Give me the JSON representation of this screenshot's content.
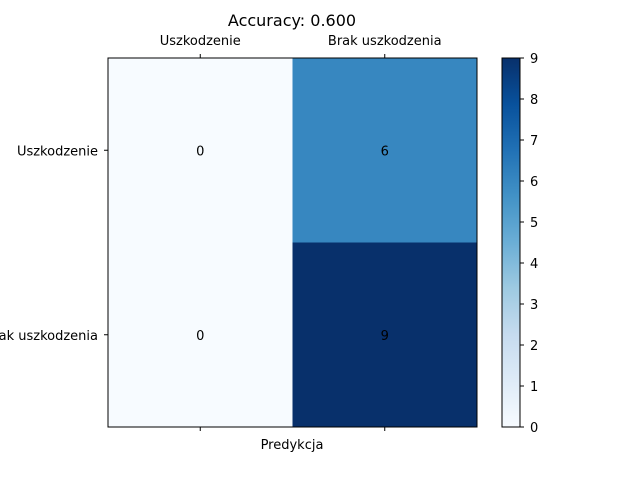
{
  "chart_data": {
    "type": "heatmap",
    "title": "Accuracy: 0.600",
    "xlabel": "Predykcja",
    "ylabel": "",
    "x_categories": [
      "Uszkodzenie",
      "Brak uszkodzenia"
    ],
    "y_categories": [
      "Uszkodzenie",
      "Brak uszkodzenia"
    ],
    "matrix": [
      [
        0,
        6
      ],
      [
        0,
        9
      ]
    ],
    "colorbar": {
      "range": [
        0,
        9
      ],
      "ticks": [
        "0",
        "1",
        "2",
        "3",
        "4",
        "5",
        "6",
        "7",
        "8",
        "9"
      ],
      "colormap": "Blues"
    },
    "x_tick_position": "top",
    "grid": false
  }
}
